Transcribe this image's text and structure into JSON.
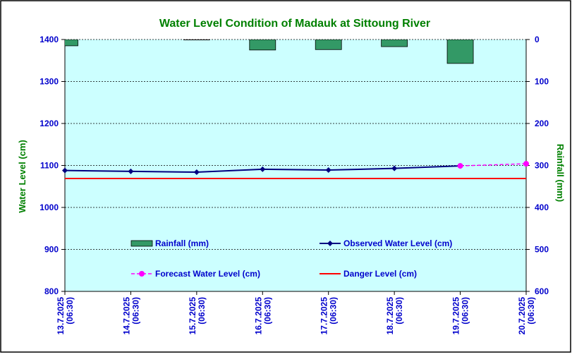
{
  "chart_data": {
    "type": "combo",
    "title": "Water Level Condition of Madauk at Sittoung River",
    "y_label": "Water Level (cm)",
    "y2_label": "Rainfall (mm)",
    "categories": [
      "13.7.2025 (06:30)",
      "14.7.2025 (06:30)",
      "15.7.2025 (06:30)",
      "16.7.2025 (06:30)",
      "17.7.2025 (06:30)",
      "18.7.2025 (06:30)",
      "19.7.2025 (06:30)",
      "20.7.2025 (06:30)"
    ],
    "ylim": [
      800,
      1400
    ],
    "yticks": [
      800,
      900,
      1000,
      1100,
      1200,
      1300,
      1400
    ],
    "y2lim": [
      600,
      0
    ],
    "y2ticks": [
      0,
      100,
      200,
      300,
      400,
      500,
      600
    ],
    "grid": true,
    "series": [
      {
        "name": "Rainfall (mm)",
        "type": "bar",
        "axis": "y2",
        "color": "#339966",
        "values": [
          15,
          0,
          1,
          25,
          24,
          17,
          57,
          null
        ]
      },
      {
        "name": "Observed Water Level (cm)",
        "type": "line",
        "color": "#000080",
        "values": [
          1088,
          1086,
          1084,
          1091,
          1089,
          1093,
          1099,
          null
        ]
      },
      {
        "name": "Forecast Water Level (cm)",
        "type": "dashed-line",
        "color": "#ff00ff",
        "values": [
          null,
          null,
          null,
          null,
          null,
          null,
          1099,
          1104
        ]
      },
      {
        "name": "Danger Level (cm)",
        "type": "flat-line",
        "color": "#ff0000",
        "values": [
          1069,
          1069,
          1069,
          1069,
          1069,
          1069,
          1069,
          1069
        ]
      }
    ]
  }
}
